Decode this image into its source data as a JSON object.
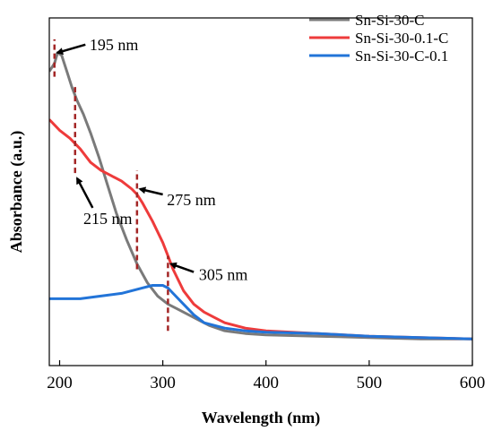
{
  "chart_data": {
    "type": "line",
    "title": "",
    "xlabel": "Wavelength (nm)",
    "ylabel": "Absorbance (a.u.)",
    "xlim": [
      190,
      600
    ],
    "ylim": [
      -0.1,
      1.2
    ],
    "xticks": [
      200,
      300,
      400,
      500,
      600
    ],
    "xtick_labels": [
      "200",
      "300",
      "400",
      "500",
      "600"
    ],
    "y_tick_labels_shown": false,
    "grid": false,
    "legend_position": "top-right",
    "series": [
      {
        "name": "Sn-Si-30-C",
        "color": "#7a7a7a",
        "x": [
          190,
          195,
          198,
          202,
          207,
          212,
          217,
          223,
          230,
          238,
          246,
          255,
          265,
          275,
          285,
          295,
          305,
          315,
          325,
          335,
          345,
          360,
          380,
          400,
          450,
          500,
          550,
          600
        ],
        "y": [
          1.0,
          1.03,
          1.07,
          1.06,
          1.0,
          0.94,
          0.89,
          0.84,
          0.77,
          0.68,
          0.58,
          0.47,
          0.37,
          0.28,
          0.21,
          0.16,
          0.13,
          0.11,
          0.09,
          0.07,
          0.05,
          0.03,
          0.02,
          0.015,
          0.01,
          0.005,
          0.0,
          0.0
        ]
      },
      {
        "name": "Sn-Si-30-0.1-C",
        "color": "#ee3b3b",
        "x": [
          190,
          195,
          200,
          210,
          220,
          230,
          240,
          250,
          260,
          270,
          275,
          280,
          290,
          300,
          305,
          310,
          320,
          330,
          340,
          350,
          360,
          380,
          400,
          450,
          500,
          550,
          600
        ],
        "y": [
          0.82,
          0.8,
          0.78,
          0.75,
          0.71,
          0.66,
          0.63,
          0.61,
          0.59,
          0.56,
          0.54,
          0.51,
          0.44,
          0.36,
          0.31,
          0.26,
          0.18,
          0.13,
          0.1,
          0.08,
          0.06,
          0.04,
          0.03,
          0.02,
          0.01,
          0.005,
          0.0
        ]
      },
      {
        "name": "Sn-Si-30-C-0.1",
        "color": "#2274d8",
        "x": [
          190,
          200,
          220,
          240,
          260,
          280,
          290,
          295,
          300,
          305,
          310,
          320,
          330,
          340,
          360,
          380,
          400,
          450,
          500,
          550,
          600
        ],
        "y": [
          0.15,
          0.15,
          0.15,
          0.16,
          0.17,
          0.19,
          0.2,
          0.2,
          0.2,
          0.19,
          0.17,
          0.13,
          0.09,
          0.06,
          0.04,
          0.03,
          0.025,
          0.02,
          0.01,
          0.005,
          0.0
        ]
      }
    ],
    "annotations": [
      {
        "label": "195 nm",
        "x": 195,
        "line_y": [
          0.98,
          1.12
        ],
        "arrow_to": [
          198,
          1.07
        ],
        "arrow_from": [
          225,
          1.1
        ],
        "text_at": [
          229,
          1.1
        ]
      },
      {
        "label": "215 nm",
        "x": 215,
        "line_y": [
          0.62,
          0.95
        ],
        "arrow_to": [
          217,
          0.6
        ],
        "arrow_from": [
          232,
          0.49
        ],
        "text_at": [
          223,
          0.45
        ]
      },
      {
        "label": "275 nm",
        "x": 275,
        "line_y": [
          0.26,
          0.63
        ],
        "arrow_to": [
          278,
          0.56
        ],
        "arrow_from": [
          300,
          0.54
        ],
        "text_at": [
          304,
          0.52
        ]
      },
      {
        "label": "305 nm",
        "x": 305,
        "line_y": [
          0.03,
          0.31
        ],
        "arrow_to": [
          308,
          0.28
        ],
        "arrow_from": [
          330,
          0.25
        ],
        "text_at": [
          335,
          0.24
        ]
      }
    ],
    "marker_line_color": "#a32626",
    "arrow_color": "#000000"
  }
}
